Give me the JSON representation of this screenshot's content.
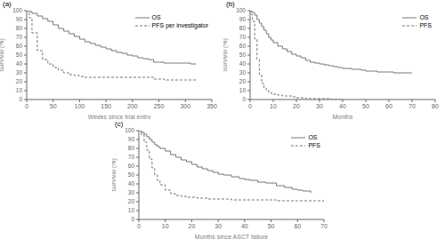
{
  "chart_data": [
    {
      "type": "step",
      "title": "(a)",
      "x_label": "Weeks since trial entry",
      "y_label": "Survival (%)",
      "xlim": [
        0,
        350
      ],
      "ylim": [
        0,
        100
      ],
      "xticks": [
        0,
        50,
        100,
        150,
        200,
        250,
        300,
        350
      ],
      "yticks": [
        0,
        10,
        20,
        30,
        40,
        50,
        60,
        70,
        80,
        90,
        100
      ],
      "grid": false,
      "legend": "upper right",
      "series": [
        {
          "name": "OS",
          "color": "#777777",
          "line_style": "solid",
          "x": [
            0,
            5,
            10,
            20,
            30,
            40,
            50,
            60,
            70,
            80,
            90,
            100,
            110,
            120,
            130,
            140,
            150,
            160,
            170,
            180,
            190,
            200,
            210,
            220,
            230,
            240,
            250,
            260,
            270,
            280,
            290,
            300,
            310,
            320
          ],
          "values": [
            100,
            99,
            97,
            94,
            91,
            88,
            84,
            80,
            77,
            74,
            71,
            68,
            65,
            63,
            61,
            59,
            57,
            55,
            53,
            52,
            50,
            49,
            47,
            46,
            45,
            42,
            42,
            41,
            41,
            41,
            41,
            41,
            40,
            40
          ]
        },
        {
          "name": "PFS per investigator",
          "color": "#777777",
          "line_style": "dashed",
          "x": [
            0,
            5,
            10,
            20,
            30,
            40,
            50,
            60,
            70,
            80,
            90,
            100,
            110,
            120,
            130,
            140,
            150,
            160,
            170,
            180,
            190,
            200,
            210,
            220,
            230,
            240,
            250,
            260,
            270,
            280,
            290,
            300,
            310,
            320
          ],
          "values": [
            100,
            92,
            75,
            55,
            45,
            40,
            36,
            33,
            30,
            28,
            27,
            26,
            25,
            25,
            25,
            25,
            25,
            25,
            25,
            25,
            25,
            25,
            25,
            25,
            25,
            23,
            23,
            22,
            22,
            22,
            22,
            22,
            22,
            22
          ]
        }
      ]
    },
    {
      "type": "step",
      "title": "(b)",
      "x_label": "Months",
      "y_label": "Survival (%)",
      "xlim": [
        0,
        80
      ],
      "ylim": [
        0,
        100
      ],
      "xticks": [
        0,
        10,
        20,
        30,
        40,
        50,
        60,
        70,
        80
      ],
      "yticks": [
        0,
        10,
        20,
        30,
        40,
        50,
        60,
        70,
        80,
        90,
        100
      ],
      "grid": false,
      "legend": "upper right",
      "series": [
        {
          "name": "OS",
          "color": "#777777",
          "line_style": "solid",
          "x": [
            0,
            0.5,
            1,
            2,
            3,
            4,
            5,
            6,
            7,
            8,
            9,
            10,
            12,
            14,
            16,
            18,
            20,
            22,
            24,
            26,
            28,
            30,
            32,
            34,
            36,
            38,
            40,
            42,
            44,
            46,
            48,
            50,
            52,
            55,
            58,
            62,
            65,
            70
          ],
          "values": [
            100,
            99,
            98,
            95,
            90,
            86,
            82,
            78,
            74,
            70,
            67,
            64,
            60,
            57,
            54,
            51,
            49,
            47,
            44,
            42,
            41,
            40,
            39,
            38,
            37,
            36,
            35,
            35,
            34,
            34,
            33,
            32,
            32,
            31,
            31,
            30,
            30,
            30
          ]
        },
        {
          "name": "PFS",
          "color": "#777777",
          "line_style": "dashed",
          "x": [
            0,
            0.5,
            1,
            2,
            3,
            4,
            5,
            6,
            7,
            8,
            9,
            10,
            12,
            14,
            16,
            18,
            20,
            22,
            24,
            26,
            28,
            30,
            32,
            35,
            40
          ],
          "values": [
            100,
            96,
            88,
            68,
            45,
            28,
            18,
            13,
            10,
            8,
            7,
            6,
            5,
            4,
            4,
            3,
            2,
            2,
            1,
            1,
            1,
            1,
            1,
            0,
            0
          ]
        }
      ]
    },
    {
      "type": "step",
      "title": "(c)",
      "x_label": "Months since ASCT failure",
      "y_label": "Survival (%)",
      "xlim": [
        0,
        70
      ],
      "ylim": [
        0,
        100
      ],
      "xticks": [
        0,
        10,
        20,
        30,
        40,
        50,
        60,
        70
      ],
      "yticks": [
        0,
        10,
        20,
        30,
        40,
        50,
        60,
        70,
        80,
        90,
        100
      ],
      "grid": false,
      "legend": "upper right",
      "series": [
        {
          "name": "OS",
          "color": "#777777",
          "line_style": "solid",
          "x": [
            0,
            1,
            2,
            3,
            4,
            5,
            6,
            7,
            8,
            10,
            12,
            14,
            16,
            18,
            20,
            22,
            24,
            26,
            28,
            30,
            32,
            35,
            38,
            40,
            42,
            45,
            48,
            52,
            55,
            58,
            60,
            62,
            65
          ],
          "values": [
            100,
            98,
            96,
            93,
            90,
            87,
            84,
            82,
            80,
            77,
            73,
            70,
            67,
            65,
            62,
            59,
            57,
            55,
            53,
            51,
            50,
            48,
            46,
            45,
            44,
            42,
            41,
            38,
            36,
            34,
            33,
            32,
            30
          ]
        },
        {
          "name": "PFS",
          "color": "#777777",
          "line_style": "dashed",
          "x": [
            0,
            1,
            2,
            3,
            4,
            5,
            6,
            7,
            8,
            10,
            12,
            14,
            16,
            18,
            20,
            22,
            24,
            26,
            28,
            30,
            32,
            35,
            38,
            40,
            42,
            45,
            48,
            52,
            55,
            58,
            60,
            65,
            70
          ],
          "values": [
            100,
            95,
            87,
            78,
            68,
            58,
            50,
            44,
            39,
            33,
            29,
            27,
            26,
            25,
            25,
            24,
            24,
            23,
            23,
            23,
            23,
            22,
            22,
            22,
            22,
            22,
            22,
            21,
            21,
            21,
            21,
            21,
            20
          ]
        }
      ]
    }
  ]
}
